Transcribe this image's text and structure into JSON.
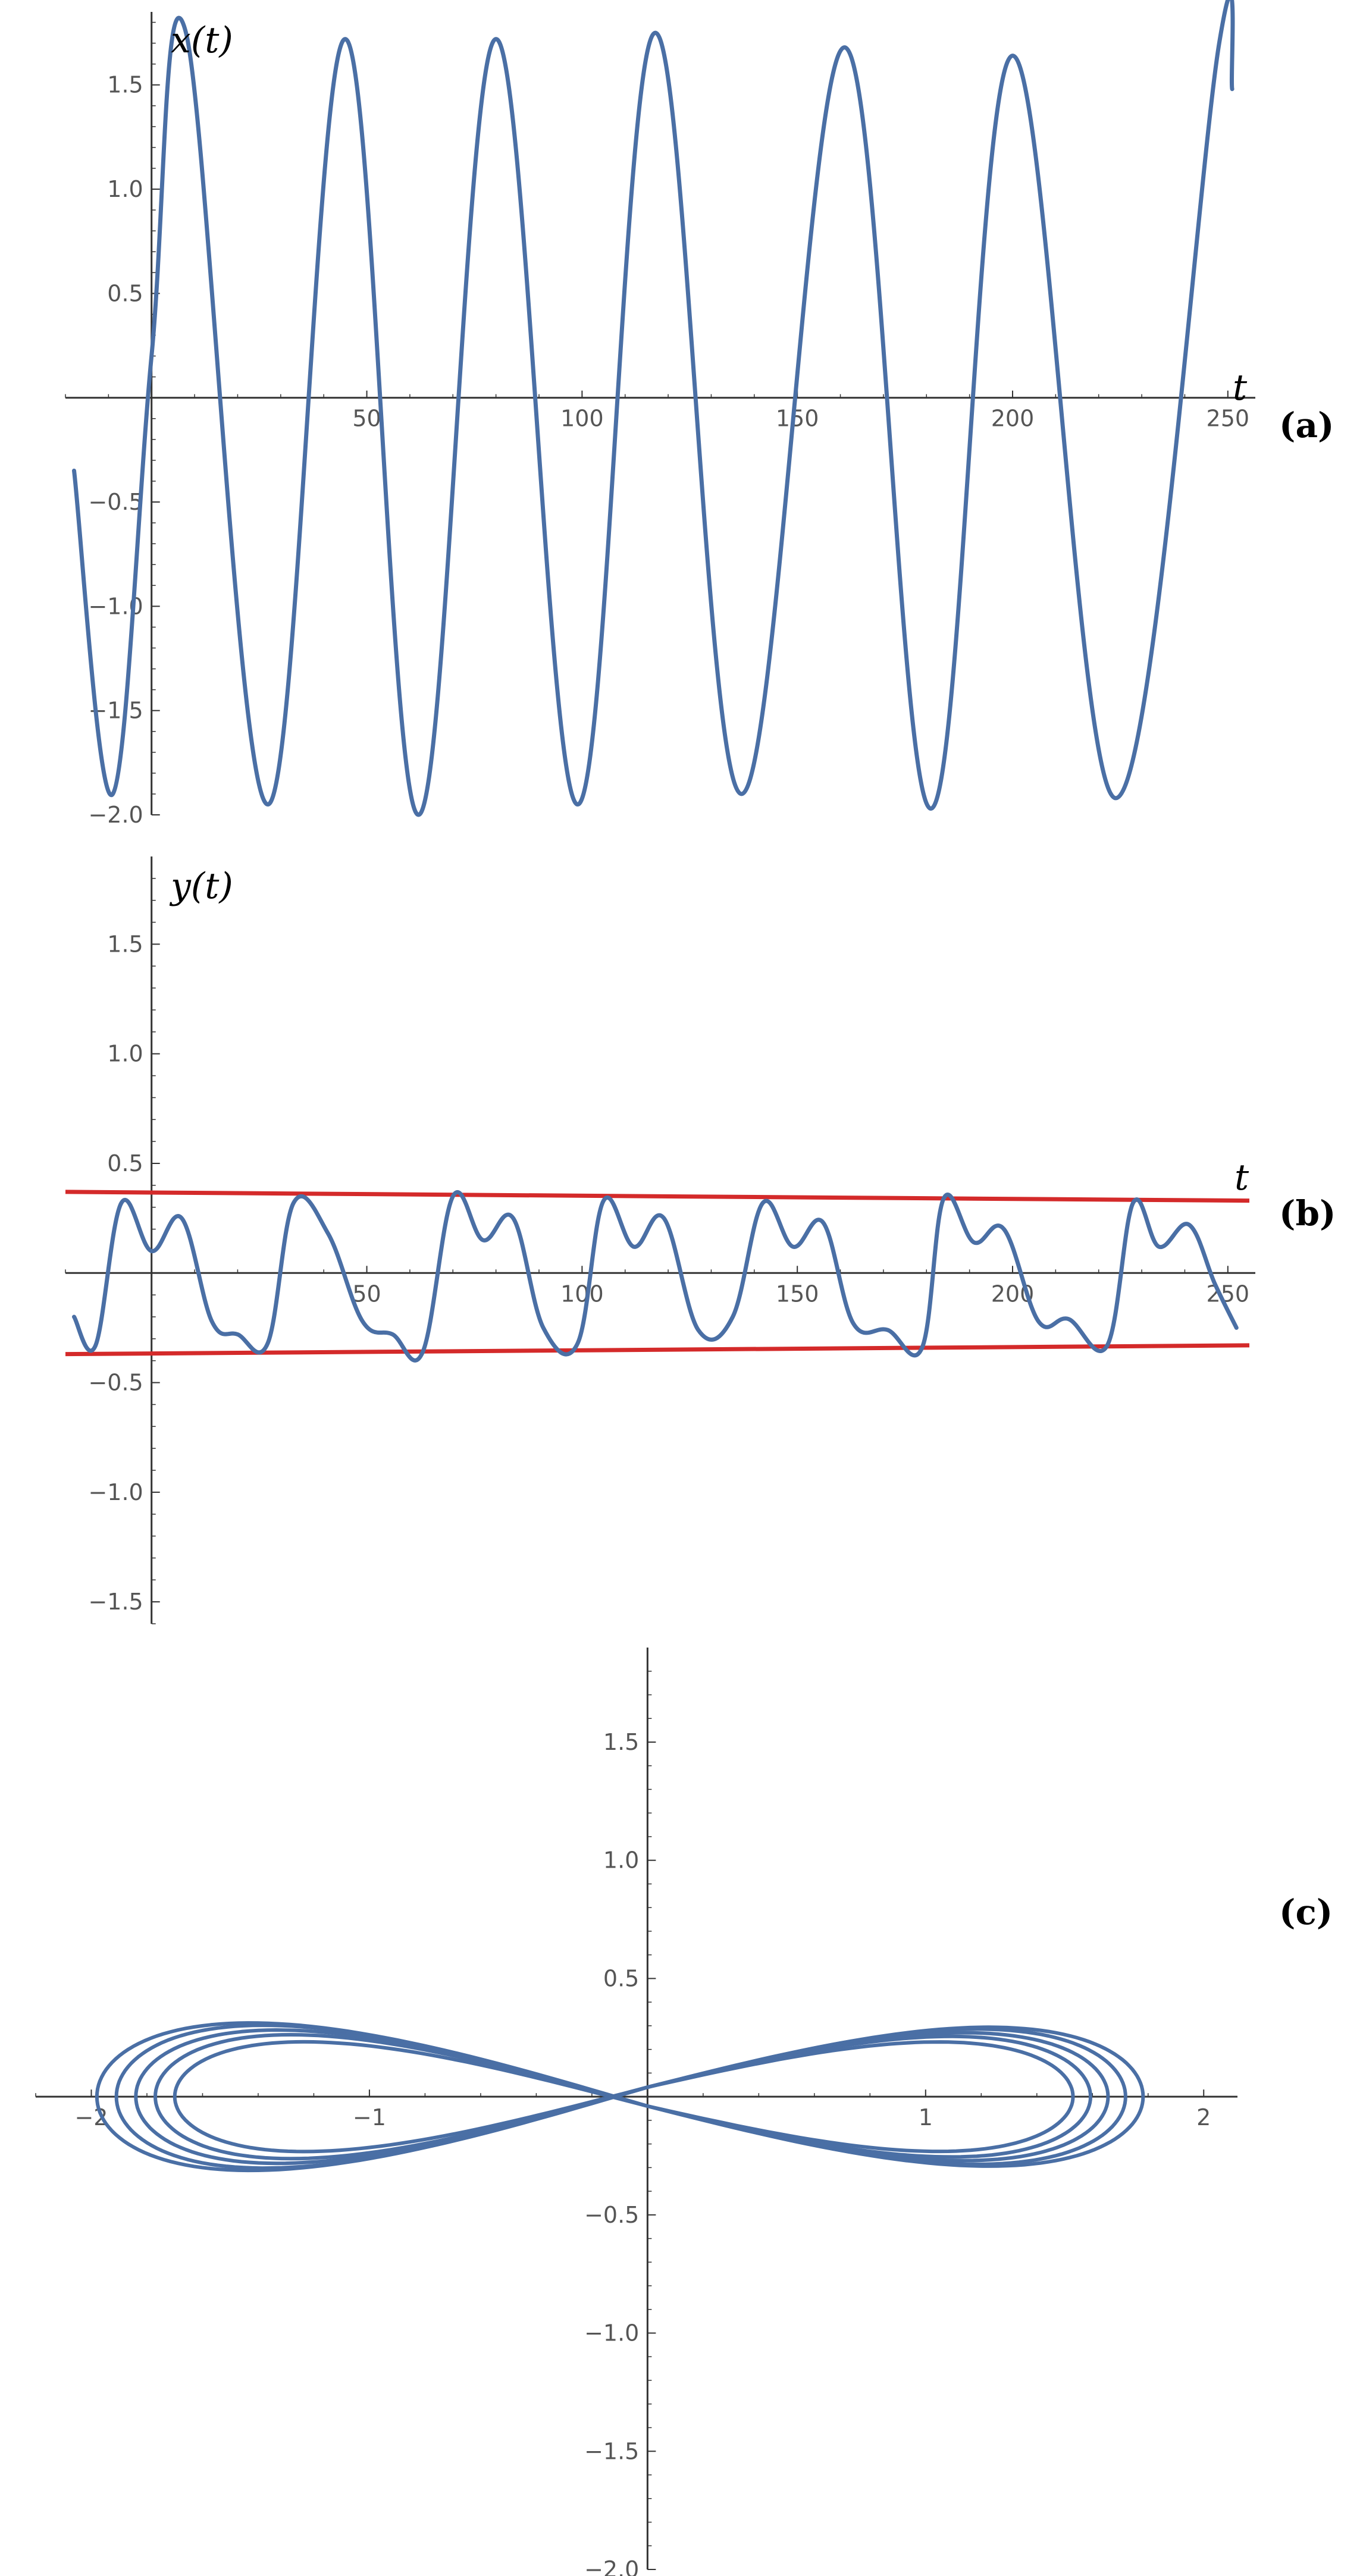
{
  "colors": {
    "curve": "#4a6fa5",
    "bound": "#d42a2a",
    "axis": "#333333",
    "tick_text": "#555555"
  },
  "chart_data": [
    {
      "type": "line",
      "panel_label": "(a)",
      "xlabel": "t",
      "ylabel": "x(t)",
      "xlim": [
        -20,
        255
      ],
      "ylim": [
        -2.0,
        1.85
      ],
      "x_ticks": [
        50,
        100,
        150,
        200,
        250
      ],
      "y_ticks": [
        -2.0,
        -1.5,
        -1.0,
        -0.5,
        0.5,
        1.0,
        1.5
      ],
      "y_tick_labels": [
        "-2.0",
        "-1.5",
        "-1.0",
        "-0.5",
        "0.5",
        "1.0",
        "1.5"
      ],
      "series": [
        {
          "x": [
            -18,
            -9,
            0,
            8,
            27,
            45,
            62,
            80,
            99,
            117,
            137,
            161,
            181,
            200,
            224,
            248,
            251
          ],
          "y": [
            -0.35,
            -1.9,
            0.2,
            1.75,
            -1.95,
            1.72,
            -2.0,
            1.72,
            -1.95,
            1.75,
            -1.9,
            1.68,
            -1.97,
            1.64,
            -1.92,
            1.7,
            1.48
          ]
        }
      ]
    },
    {
      "type": "line",
      "panel_label": "(b)",
      "xlabel": "t",
      "ylabel": "y(t)",
      "xlim": [
        -20,
        255
      ],
      "ylim": [
        -1.6,
        1.9
      ],
      "x_ticks": [
        50,
        100,
        150,
        200,
        250
      ],
      "y_ticks": [
        -1.5,
        -1.0,
        -0.5,
        0.5,
        1.0,
        1.5
      ],
      "y_tick_labels": [
        "-1.5",
        "-1.0",
        "-0.5",
        "0.5",
        "1.0",
        "1.5"
      ],
      "series": [
        {
          "x": [
            -18,
            -13,
            -7,
            0,
            7,
            14,
            20,
            27,
            33,
            41,
            49,
            56,
            63,
            70,
            77,
            84,
            91,
            99,
            105,
            112,
            119,
            127,
            135,
            142,
            149,
            156,
            163,
            171,
            179,
            184,
            191,
            198,
            206,
            213,
            222,
            228,
            234,
            241,
            247,
            252
          ],
          "y": [
            -0.2,
            -0.33,
            0.32,
            0.1,
            0.25,
            -0.22,
            -0.28,
            -0.32,
            0.32,
            0.18,
            -0.22,
            -0.28,
            -0.36,
            0.35,
            0.15,
            0.25,
            -0.25,
            -0.32,
            0.33,
            0.12,
            0.25,
            -0.26,
            -0.2,
            0.32,
            0.12,
            0.23,
            -0.23,
            -0.26,
            -0.34,
            0.34,
            0.14,
            0.2,
            -0.22,
            -0.21,
            -0.33,
            0.32,
            0.12,
            0.22,
            -0.05,
            -0.25
          ]
        }
      ],
      "bounds": [
        {
          "x": [
            -20,
            255
          ],
          "y": [
            0.37,
            0.33
          ]
        },
        {
          "x": [
            -20,
            255
          ],
          "y": [
            -0.37,
            -0.33
          ]
        }
      ]
    },
    {
      "type": "line",
      "panel_label": "(c)",
      "xlabel": "",
      "ylabel": "",
      "xlim": [
        -2.2,
        2.1
      ],
      "ylim": [
        -2.0,
        1.9
      ],
      "x_ticks": [
        -2,
        -1,
        1,
        2
      ],
      "x_tick_labels": [
        "-2",
        "-1",
        "1",
        "2"
      ],
      "y_ticks": [
        -2.0,
        -1.5,
        -1.0,
        -0.5,
        0.5,
        1.0,
        1.5
      ],
      "y_tick_labels": [
        "-2.0",
        "-1.5",
        "-1.0",
        "-0.5",
        "0.5",
        "1.0",
        "1.5"
      ],
      "series": [
        {
          "name": "",
          "figure_eight_amplitudes": [
            1.7,
            1.77,
            1.84,
            1.91,
            1.98
          ],
          "y_peak": [
            0.26,
            0.29,
            0.31,
            0.33,
            0.34
          ]
        }
      ]
    }
  ]
}
